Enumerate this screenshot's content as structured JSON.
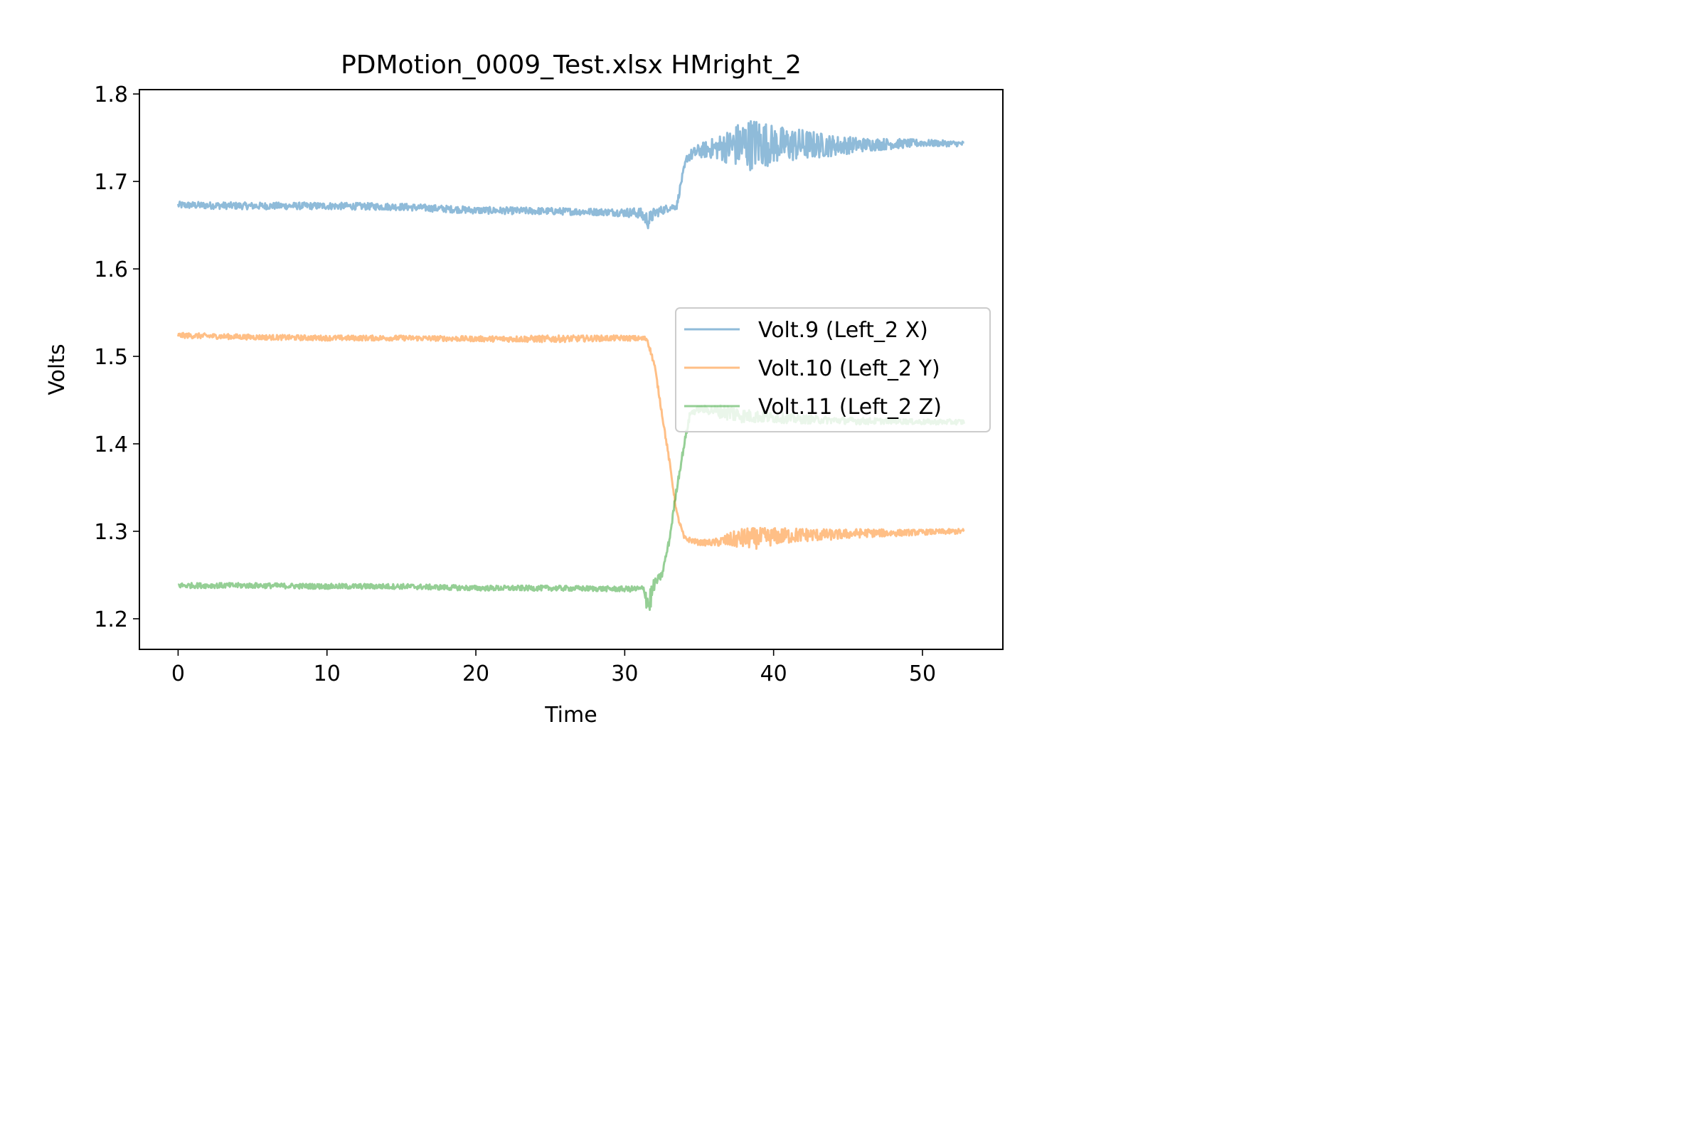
{
  "chart_data": {
    "type": "line",
    "title": "PDMotion_0009_Test.xlsx HMright_2",
    "xlabel": "Time",
    "ylabel": "Volts",
    "xlim": [
      -2.6,
      55.4
    ],
    "ylim": [
      1.165,
      1.805
    ],
    "xticks": [
      0,
      10,
      20,
      30,
      40,
      50
    ],
    "yticks": [
      1.2,
      1.3,
      1.4,
      1.5,
      1.6,
      1.7,
      1.8
    ],
    "grid": false,
    "legend_position": "center-right",
    "series": [
      {
        "name": "Volt.9 (Left_2 X)",
        "color": "#1f77b4",
        "x": [
          0,
          5,
          10,
          15,
          20,
          25,
          29,
          31,
          31.6,
          32,
          33,
          33.5,
          33.8,
          34.2,
          35,
          36,
          37,
          38,
          39,
          40,
          42,
          44,
          46,
          48,
          50,
          52.8
        ],
        "y": [
          1.673,
          1.672,
          1.672,
          1.671,
          1.667,
          1.666,
          1.665,
          1.664,
          1.655,
          1.664,
          1.67,
          1.672,
          1.7,
          1.728,
          1.735,
          1.738,
          1.74,
          1.742,
          1.744,
          1.742,
          1.742,
          1.741,
          1.742,
          1.743,
          1.744,
          1.743
        ],
        "noise": [
          0.004,
          0.004,
          0.004,
          0.004,
          0.004,
          0.004,
          0.004,
          0.006,
          0.01,
          0.006,
          0.004,
          0.004,
          0.004,
          0.006,
          0.008,
          0.012,
          0.02,
          0.03,
          0.03,
          0.022,
          0.018,
          0.012,
          0.008,
          0.006,
          0.004,
          0.003
        ]
      },
      {
        "name": "Volt.10 (Left_2 Y)",
        "color": "#ff7f0e",
        "x": [
          0,
          5,
          10,
          15,
          20,
          25,
          30,
          31.5,
          32,
          33,
          33.5,
          34,
          35,
          36,
          37,
          38,
          39,
          40,
          42,
          44,
          46,
          48,
          50,
          52.8
        ],
        "y": [
          1.524,
          1.522,
          1.521,
          1.521,
          1.52,
          1.52,
          1.521,
          1.52,
          1.49,
          1.38,
          1.32,
          1.292,
          1.287,
          1.287,
          1.29,
          1.292,
          1.292,
          1.294,
          1.296,
          1.296,
          1.298,
          1.298,
          1.299,
          1.3
        ],
        "noise": [
          0.003,
          0.003,
          0.003,
          0.003,
          0.003,
          0.004,
          0.003,
          0.003,
          0.003,
          0.003,
          0.003,
          0.003,
          0.003,
          0.004,
          0.008,
          0.012,
          0.012,
          0.01,
          0.008,
          0.006,
          0.005,
          0.004,
          0.003,
          0.003
        ]
      },
      {
        "name": "Volt.11 (Left_2 Z)",
        "color": "#2ca02c",
        "x": [
          0,
          5,
          10,
          15,
          20,
          25,
          30,
          31.3,
          31.6,
          32,
          32.5,
          33,
          33.5,
          34,
          34.4,
          35,
          36,
          37,
          38,
          40,
          42,
          44,
          46,
          48,
          50,
          52.8
        ],
        "y": [
          1.238,
          1.238,
          1.237,
          1.237,
          1.235,
          1.235,
          1.234,
          1.234,
          1.215,
          1.24,
          1.25,
          1.29,
          1.35,
          1.4,
          1.435,
          1.44,
          1.438,
          1.436,
          1.432,
          1.43,
          1.428,
          1.427,
          1.426,
          1.426,
          1.425,
          1.425
        ],
        "noise": [
          0.003,
          0.003,
          0.003,
          0.003,
          0.003,
          0.003,
          0.003,
          0.004,
          0.02,
          0.006,
          0.004,
          0.004,
          0.004,
          0.004,
          0.004,
          0.004,
          0.006,
          0.01,
          0.008,
          0.006,
          0.005,
          0.004,
          0.004,
          0.003,
          0.003,
          0.003
        ]
      }
    ]
  }
}
